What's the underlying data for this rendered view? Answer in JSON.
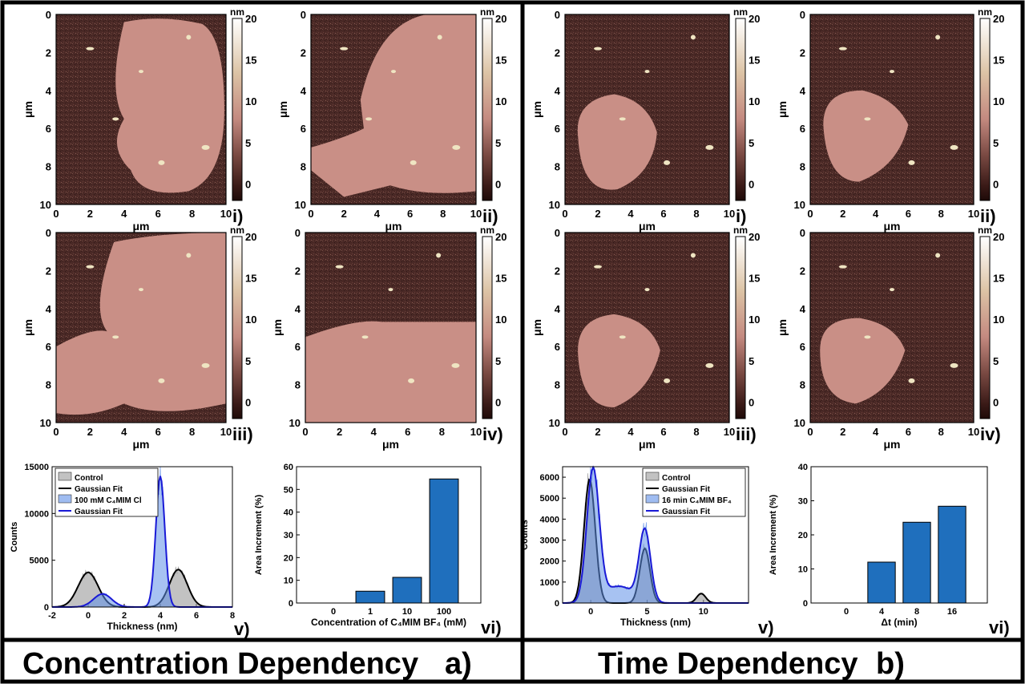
{
  "colors": {
    "border": "#000000",
    "substrate_dark": "#4a2926",
    "flake": "#c98f86",
    "bright": "#efe5c2",
    "hist_control": "#9a9a9a",
    "hist_sample": "#5f8fe8",
    "fit_control": "#000000",
    "fit_sample": "#1a1ad6",
    "bar": "#1f6fbd"
  },
  "afm": {
    "axis_unit": "μm",
    "ticks": [
      "0",
      "2",
      "4",
      "6",
      "8",
      "10"
    ],
    "colorbar_unit": "nm",
    "colorbar_ticks": [
      "20",
      "15",
      "10",
      "5",
      "0"
    ]
  },
  "panels": {
    "a": {
      "title": "Concentration Dependency",
      "letter": "a)",
      "afm_labels": [
        "i)",
        "ii)",
        "iii)",
        "iv)"
      ],
      "hist_label": "v)",
      "bar_label": "vi)"
    },
    "b": {
      "title": "Time Dependency",
      "letter": "b)",
      "afm_labels": [
        "i)",
        "ii)",
        "iii)",
        "iv)"
      ],
      "hist_label": "v)",
      "bar_label": "vi)"
    }
  },
  "chart_data": [
    {
      "id": "a-v",
      "type": "area",
      "xlabel": "Thickness (nm)",
      "ylabel": "Counts",
      "xlim": [
        -2,
        8
      ],
      "ylim": [
        0,
        15000
      ],
      "xticks": [
        "-2",
        "0",
        "2",
        "4",
        "6",
        "8"
      ],
      "yticks": [
        "0",
        "5000",
        "10000",
        "15000"
      ],
      "legend": [
        "Control",
        "Gaussian Fit",
        "100 mM C₄MIM Cl",
        "Gaussian Fit"
      ],
      "legend_position": "top-left",
      "series": [
        {
          "name": "Control",
          "peaks": [
            {
              "center": 0,
              "height": 3700,
              "sigma": 0.55
            },
            {
              "center": 5,
              "height": 4000,
              "sigma": 0.5
            }
          ]
        },
        {
          "name": "100 mM C₄MIM Cl",
          "peaks": [
            {
              "center": 0.8,
              "height": 1400,
              "sigma": 0.5
            },
            {
              "center": 4,
              "height": 14000,
              "sigma": 0.25
            }
          ]
        }
      ]
    },
    {
      "id": "a-vi",
      "type": "bar",
      "xlabel": "Concentration of C₄MIM BF₄ (mM)",
      "ylabel": "Area Increment (%)",
      "categories": [
        "0",
        "1",
        "10",
        "100"
      ],
      "values": [
        0,
        5.2,
        11.3,
        54.6
      ],
      "ylim": [
        0,
        60
      ],
      "yticks": [
        "0",
        "10",
        "20",
        "30",
        "40",
        "50",
        "60"
      ]
    },
    {
      "id": "b-v",
      "type": "area",
      "xlabel": "Thickness (nm)",
      "ylabel": "Counts",
      "xlim": [
        -2.5,
        14
      ],
      "ylim": [
        0,
        6500
      ],
      "xticks": [
        "0",
        "5",
        "10"
      ],
      "yticks": [
        "0",
        "1000",
        "2000",
        "3000",
        "4000",
        "5000",
        "6000"
      ],
      "legend": [
        "Control",
        "Gaussian Fit",
        "16 min C₄MIM BF₄",
        "Gaussian Fit"
      ],
      "legend_position": "top-right",
      "series": [
        {
          "name": "Control",
          "peaks": [
            {
              "center": -0.1,
              "height": 5900,
              "sigma": 0.5
            },
            {
              "center": 4.8,
              "height": 2600,
              "sigma": 0.45
            },
            {
              "center": 9.8,
              "height": 450,
              "sigma": 0.4
            }
          ]
        },
        {
          "name": "16 min C₄MIM BF₄",
          "peaks": [
            {
              "center": 0.2,
              "height": 6300,
              "sigma": 0.55
            },
            {
              "center": 2.5,
              "height": 800,
              "sigma": 1.3
            },
            {
              "center": 4.8,
              "height": 3400,
              "sigma": 0.5
            }
          ]
        }
      ]
    },
    {
      "id": "b-vi",
      "type": "bar",
      "xlabel": "Δt (min)",
      "ylabel": "Area Increment (%)",
      "categories": [
        "0",
        "4",
        "8",
        "16"
      ],
      "values": [
        0,
        12,
        23.7,
        28.4
      ],
      "ylim": [
        0,
        40
      ],
      "yticks": [
        "0",
        "10",
        "20",
        "30",
        "40"
      ]
    }
  ]
}
